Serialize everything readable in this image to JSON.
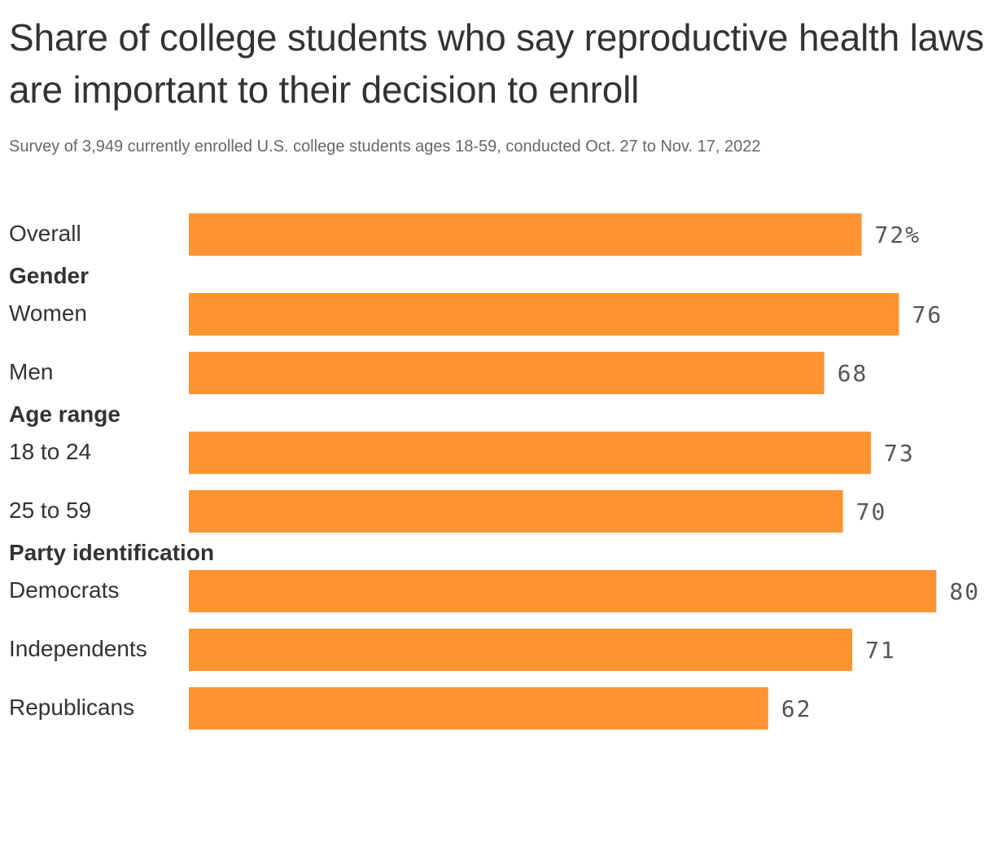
{
  "chart_data": {
    "type": "bar",
    "orientation": "horizontal",
    "title": "Share of college students who say reproductive health laws are important to their decision to enroll",
    "subtitle": "Survey of 3,949 currently enrolled U.S. college students ages 18-59, conducted Oct. 27 to Nov. 17, 2022",
    "bar_color": "#FF9430",
    "xlim": [
      0,
      80
    ],
    "grid": false,
    "groups": [
      {
        "name": "",
        "rows": [
          {
            "label": "Overall",
            "value": 72,
            "value_label": "72%"
          }
        ]
      },
      {
        "name": "Gender",
        "rows": [
          {
            "label": "Women",
            "value": 76,
            "value_label": "76"
          },
          {
            "label": "Men",
            "value": 68,
            "value_label": "68"
          }
        ]
      },
      {
        "name": "Age range",
        "rows": [
          {
            "label": "18 to 24",
            "value": 73,
            "value_label": "73"
          },
          {
            "label": "25 to 59",
            "value": 70,
            "value_label": "70"
          }
        ]
      },
      {
        "name": "Party identification",
        "rows": [
          {
            "label": "Democrats",
            "value": 80,
            "value_label": "80"
          },
          {
            "label": "Independents",
            "value": 71,
            "value_label": "71"
          },
          {
            "label": "Republicans",
            "value": 62,
            "value_label": "62"
          }
        ]
      }
    ]
  }
}
